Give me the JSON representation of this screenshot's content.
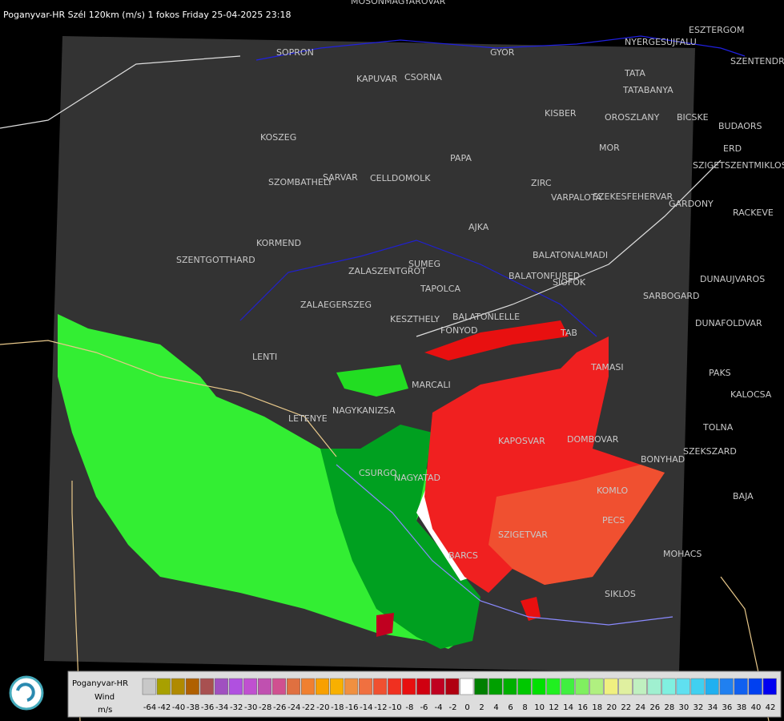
{
  "header": {
    "title": "Poganyvar-HR Szél 120km (m/s) 1 fokos Friday 25-04-2025 23:18"
  },
  "cities": [
    "MOSONMAGYAROVAR",
    "SOPRON",
    "GYOR",
    "KAPUVAR",
    "CSORNA",
    "ESZTERGOM",
    "NYERGESUJFALU",
    "SZENTENDRE",
    "TATA",
    "TATABANYA",
    "KISBER",
    "OROSZLANY",
    "BICSKE",
    "BUDAORS",
    "ERD",
    "SZIGETSZENTMIKLOS",
    "MOR",
    "RACKEVE",
    "PAPA",
    "ZIRC",
    "VARPALOTA",
    "SZEKESFEHERVAR",
    "GARDONY",
    "KOSZEG",
    "SZOMBATHELY",
    "SARVAR",
    "CELLDOMOLK",
    "AJKA",
    "KORMEND",
    "SZENTGOTTHARD",
    "SUMEG",
    "ZALASZENTGROT",
    "BALATONALMADI",
    "BALATONFURED",
    "SIOFOK",
    "TAPOLCA",
    "ZALAEGERSZEG",
    "KESZTHELY",
    "BALATONLELLE",
    "FONYOD",
    "TAB",
    "DUNAUJVAROS",
    "SARBOGARD",
    "DUNAFOLDVAR",
    "LENTI",
    "TAMASI",
    "MARCALI",
    "PAKS",
    "KALOCSA",
    "LETENYE",
    "NAGYKANIZSA",
    "KAPOSVAR",
    "DOMBOVAR",
    "TOLNA",
    "SZEKSZARD",
    "CSURGO",
    "NAGYATAD",
    "BONYHAD",
    "KOMLO",
    "BAJA",
    "PECS",
    "SZIGETVAR",
    "BARCS",
    "MOHACS",
    "SIKLOS"
  ],
  "legend": {
    "title": "Poganyvar-HR",
    "label": "Wind",
    "unit": "m/s",
    "items": [
      {
        "value": -64,
        "color": "#c8c8c8"
      },
      {
        "value": -42,
        "color": "#a8a000"
      },
      {
        "value": -40,
        "color": "#b08a00"
      },
      {
        "value": -38,
        "color": "#b06000"
      },
      {
        "value": -36,
        "color": "#a85050"
      },
      {
        "value": -34,
        "color": "#a050c0"
      },
      {
        "value": -32,
        "color": "#b050e0"
      },
      {
        "value": -30,
        "color": "#c050d0"
      },
      {
        "value": -28,
        "color": "#c050b0"
      },
      {
        "value": -26,
        "color": "#d05090"
      },
      {
        "value": -24,
        "color": "#e07040"
      },
      {
        "value": -22,
        "color": "#f08030"
      },
      {
        "value": -20,
        "color": "#f8a000"
      },
      {
        "value": -18,
        "color": "#f8b000"
      },
      {
        "value": -16,
        "color": "#f09040"
      },
      {
        "value": -14,
        "color": "#f07040"
      },
      {
        "value": -12,
        "color": "#f05030"
      },
      {
        "value": -10,
        "color": "#f03020"
      },
      {
        "value": -8,
        "color": "#e81010"
      },
      {
        "value": -6,
        "color": "#d00010"
      },
      {
        "value": -4,
        "color": "#c00020"
      },
      {
        "value": -2,
        "color": "#b00010"
      },
      {
        "value": 0,
        "color": "#ffffff"
      },
      {
        "value": 2,
        "color": "#008000"
      },
      {
        "value": 4,
        "color": "#00a000"
      },
      {
        "value": 6,
        "color": "#00b000"
      },
      {
        "value": 8,
        "color": "#00c800"
      },
      {
        "value": 10,
        "color": "#00e000"
      },
      {
        "value": 12,
        "color": "#20f020"
      },
      {
        "value": 14,
        "color": "#40f040"
      },
      {
        "value": 16,
        "color": "#80f060"
      },
      {
        "value": 18,
        "color": "#b0f080"
      },
      {
        "value": 20,
        "color": "#f0f080"
      },
      {
        "value": 22,
        "color": "#e0f0a0"
      },
      {
        "value": 24,
        "color": "#c0f0c0"
      },
      {
        "value": 26,
        "color": "#a0f0d0"
      },
      {
        "value": 28,
        "color": "#80f0e0"
      },
      {
        "value": 30,
        "color": "#60e0f0"
      },
      {
        "value": 32,
        "color": "#40d0f0"
      },
      {
        "value": 34,
        "color": "#20b0f0"
      },
      {
        "value": 36,
        "color": "#2080f0"
      },
      {
        "value": 38,
        "color": "#1060f0"
      },
      {
        "value": 40,
        "color": "#0040f0"
      },
      {
        "value": 42,
        "color": "#0000f0"
      }
    ]
  }
}
